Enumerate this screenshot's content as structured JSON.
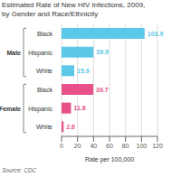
{
  "chart_data": {
    "type": "bar",
    "orientation": "horizontal",
    "title": "Estimated Rate of New HIV Infections, 2009,",
    "subtitle": "by Gender and Race/Ethnicity",
    "categories": [
      "Black",
      "Hispanic",
      "White",
      "Black",
      "Hispanic",
      "White"
    ],
    "values": [
      103.9,
      39.9,
      15.9,
      39.7,
      11.8,
      2.6
    ],
    "colors": [
      "#5bc8e8",
      "#5bc8e8",
      "#5bc8e8",
      "#e8508a",
      "#e8508a",
      "#e8508a"
    ],
    "xlabel": "Rate per 100,000",
    "xlim": [
      0,
      120
    ],
    "xticks": [
      0,
      20,
      40,
      60,
      80,
      100,
      120
    ],
    "grid": true,
    "data_labels": true,
    "annotations": [
      "Male",
      "Female",
      "Source: CDC"
    ]
  }
}
